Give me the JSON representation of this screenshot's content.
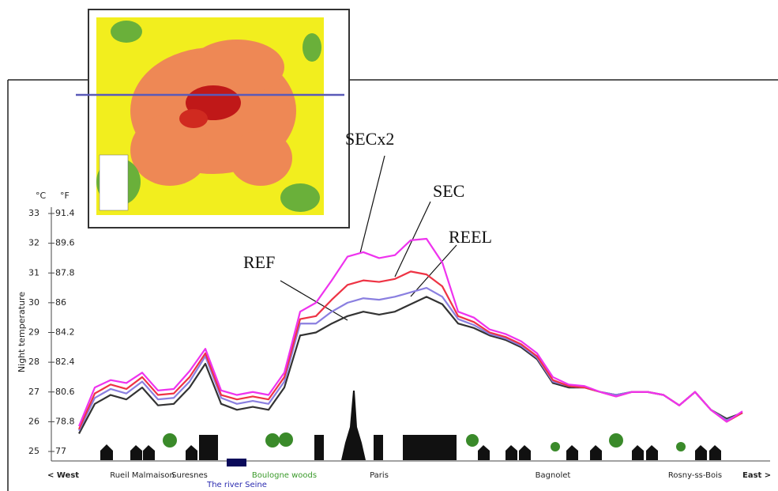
{
  "chart_data": {
    "type": "line",
    "y_axis_label": "Night temperature",
    "y_unit": "°C",
    "y2_unit": "°F",
    "x_start_label": "< West",
    "x_end_label": "East >",
    "categories": [
      null,
      null,
      null,
      null,
      "Rueil Malmaison",
      null,
      null,
      "Suresnes",
      null,
      null,
      null,
      null,
      null,
      "Boulogne woods",
      null,
      null,
      null,
      null,
      null,
      "Paris",
      null,
      null,
      null,
      null,
      null,
      null,
      null,
      null,
      null,
      null,
      "Bagnolet",
      null,
      null,
      null,
      null,
      null,
      null,
      null,
      null,
      "Rosny-ss-Bois",
      null,
      null,
      null
    ],
    "river_label": "The river Seine",
    "series": [
      {
        "name": "REEL",
        "color": "#333333",
        "values": [
          25.6,
          26.6,
          26.9,
          26.75,
          27.15,
          26.55,
          26.6,
          27.15,
          27.95,
          26.6,
          26.4,
          26.5,
          26.4,
          27.15,
          28.9,
          29.0,
          29.3,
          29.55,
          29.7,
          29.6,
          29.7,
          29.95,
          30.2,
          29.95,
          29.3,
          29.15,
          28.9,
          28.75,
          28.5,
          28.1,
          27.3,
          27.15,
          27.15,
          27.0,
          26.9,
          27.0,
          27.0,
          26.9,
          26.55,
          27.0,
          26.4,
          26.1,
          26.3
        ]
      },
      {
        "name": "REF",
        "color": "#8a7fe0",
        "values": [
          25.7,
          26.8,
          27.1,
          26.95,
          27.35,
          26.75,
          26.8,
          27.35,
          28.2,
          26.8,
          26.6,
          26.7,
          26.6,
          27.35,
          29.3,
          29.3,
          29.7,
          30.0,
          30.15,
          30.1,
          30.2,
          30.35,
          30.5,
          30.2,
          29.45,
          29.25,
          28.95,
          28.8,
          28.55,
          28.15,
          27.35,
          27.2,
          27.15,
          27.0,
          26.9,
          27.0,
          27.0,
          26.9,
          26.55,
          27.0,
          26.4,
          26.05,
          26.3
        ]
      },
      {
        "name": "SEC",
        "color": "#ee3344",
        "values": [
          25.75,
          26.95,
          27.25,
          27.1,
          27.5,
          26.9,
          26.95,
          27.5,
          28.3,
          26.9,
          26.75,
          26.85,
          26.75,
          27.5,
          29.45,
          29.55,
          30.1,
          30.6,
          30.75,
          30.7,
          30.8,
          31.05,
          30.95,
          30.55,
          29.55,
          29.35,
          29.0,
          28.85,
          28.6,
          28.2,
          27.4,
          27.2,
          27.15,
          27.0,
          26.85,
          27.0,
          27.0,
          26.9,
          26.55,
          27.0,
          26.4,
          26.0,
          26.3
        ]
      },
      {
        "name": "SECx2",
        "color": "#ee33ee",
        "values": [
          25.85,
          27.15,
          27.4,
          27.3,
          27.65,
          27.05,
          27.1,
          27.7,
          28.45,
          27.05,
          26.9,
          27.0,
          26.9,
          27.65,
          29.7,
          30.0,
          30.75,
          31.55,
          31.7,
          31.5,
          31.6,
          32.1,
          32.15,
          31.35,
          29.7,
          29.5,
          29.1,
          28.95,
          28.7,
          28.3,
          27.5,
          27.25,
          27.2,
          27.0,
          26.85,
          27.0,
          27.0,
          26.9,
          26.55,
          27.0,
          26.4,
          26.0,
          26.35
        ]
      }
    ],
    "ylim": [
      25,
      33
    ],
    "yticks": [
      25,
      26,
      27,
      28,
      29,
      30,
      31,
      32,
      33
    ],
    "y2lim": [
      77,
      91.4
    ],
    "y2ticks": [
      77,
      78.8,
      80.6,
      82.4,
      84.2,
      86,
      87.8,
      89.6,
      91.4
    ]
  }
}
